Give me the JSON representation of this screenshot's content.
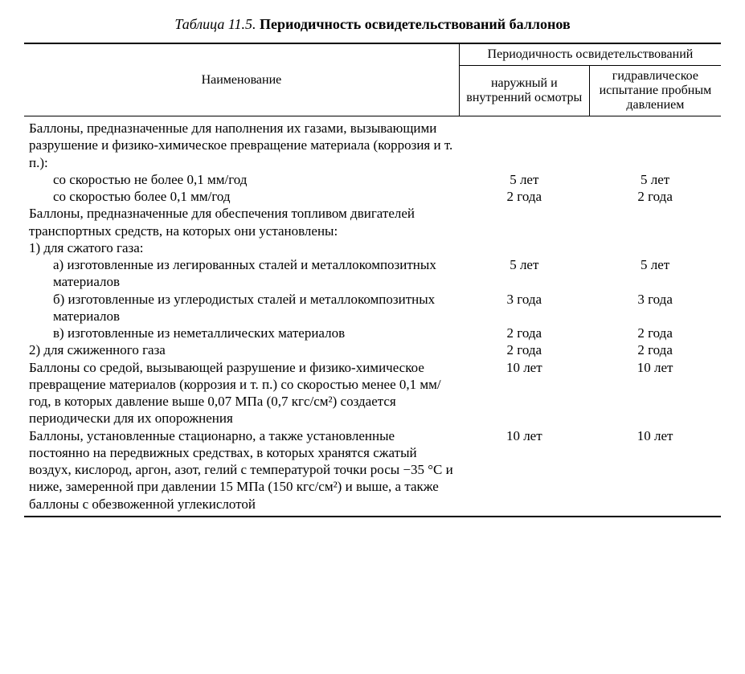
{
  "caption": {
    "label": "Таблица 11.5.",
    "title": "Периодичность освидетельствований баллонов"
  },
  "header": {
    "col1": "Наименование",
    "group": "Периодичность освидетельствований",
    "col2": "наружный и внутренний осмотры",
    "col3": "гидравлическое испытание пробным давлением"
  },
  "rows": {
    "h1": "Баллоны, предназначенные для наполнения их газами, вызывающими разрушение и физико-химическое превращение материала (коррозия и т. п.):",
    "h1a": "со скоростью не более 0,1 мм/год",
    "h1a_v1": "5 лет",
    "h1a_v2": "5 лет",
    "h1b": "со скоростью более 0,1 мм/год",
    "h1b_v1": "2 года",
    "h1b_v2": "2 года",
    "h2": "Баллоны, предназначенные для обеспечения топливом двигателей транспортных средств, на которых они установлены:",
    "h2_1": "1) для сжатого газа:",
    "h2_1a": "а) изготовленные из легированных сталей и металлокомпозитных материалов",
    "h2_1a_v1": "5 лет",
    "h2_1a_v2": "5 лет",
    "h2_1b": "б) изготовленные из углеродистых сталей и металлокомпозитных материалов",
    "h2_1b_v1": "3 года",
    "h2_1b_v2": "3 года",
    "h2_1c": "в) изготовленные из неметаллических материалов",
    "h2_1c_v1": "2 года",
    "h2_1c_v2": "2 года",
    "h2_2": "2) для сжиженного газа",
    "h2_2_v1": "2 года",
    "h2_2_v2": "2 года",
    "h3": "Баллоны со средой, вызывающей разрушение и физико-химическое превращение материалов (коррозия и т. п.) со скоростью менее 0,1 мм/год, в которых давление выше 0,07 МПа (0,7 кгс/см²) создается периодически для их опорожнения",
    "h3_v1": "10 лет",
    "h3_v2": "10 лет",
    "h4": "Баллоны, установленные стационарно, а также установленные постоянно на передвижных средствах, в которых хранятся сжатый воздух, кислород, аргон, азот, гелий с температурой точки росы −35 °C и ниже, замеренной при давлении 15 МПа (150 кгс/см²) и выше, а также баллоны с обезвоженной углекислотой",
    "h4_v1": "10 лет",
    "h4_v2": "10 лет"
  }
}
